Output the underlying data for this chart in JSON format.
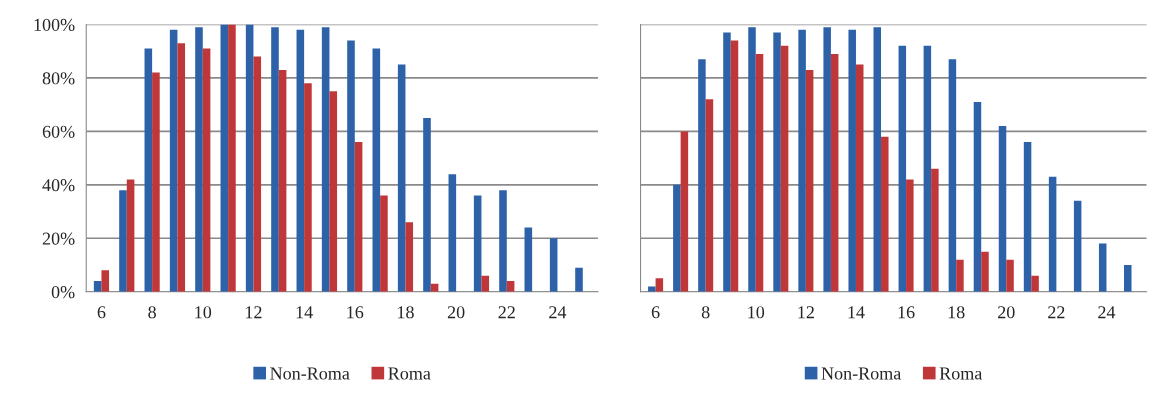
{
  "chart_data": [
    {
      "type": "bar",
      "categories": [
        "6",
        null,
        "8",
        null,
        "10",
        null,
        "12",
        null,
        "14",
        null,
        "16",
        null,
        "18",
        null,
        "20",
        null,
        "22",
        null,
        "24",
        null
      ],
      "series": [
        {
          "name": "Non-Roma",
          "color": "#2e62a8",
          "values": [
            4,
            38,
            91,
            98,
            99,
            100,
            100,
            99,
            98,
            99,
            94,
            91,
            85,
            65,
            44,
            36,
            38,
            24,
            20,
            9
          ]
        },
        {
          "name": "Roma",
          "color": "#c0373a",
          "values": [
            8,
            42,
            82,
            93,
            91,
            100,
            88,
            83,
            78,
            75,
            56,
            36,
            26,
            3,
            0,
            6,
            4,
            0,
            0,
            0
          ]
        }
      ],
      "ylim": [
        0,
        100
      ],
      "yticks": [
        {
          "value": 0,
          "label": "0%"
        },
        {
          "value": 20,
          "label": "20%"
        },
        {
          "value": 40,
          "label": "40%"
        },
        {
          "value": 60,
          "label": "60%"
        },
        {
          "value": 80,
          "label": "80%"
        },
        {
          "value": 100,
          "label": "100%"
        }
      ],
      "grid": "y",
      "legend": "bottom"
    },
    {
      "type": "bar",
      "categories": [
        "6",
        null,
        "8",
        null,
        "10",
        null,
        "12",
        null,
        "14",
        null,
        "16",
        null,
        "18",
        null,
        "20",
        null,
        "22",
        null,
        "24",
        null
      ],
      "series": [
        {
          "name": "Non-Roma",
          "color": "#2e62a8",
          "values": [
            2,
            40,
            87,
            97,
            99,
            97,
            98,
            99,
            98,
            99,
            92,
            92,
            87,
            71,
            62,
            56,
            43,
            34,
            18,
            10
          ]
        },
        {
          "name": "Roma",
          "color": "#c0373a",
          "values": [
            5,
            60,
            72,
            94,
            89,
            92,
            83,
            89,
            85,
            58,
            42,
            46,
            12,
            15,
            12,
            6,
            0,
            0,
            0,
            0
          ]
        }
      ],
      "ylim": [
        0,
        100
      ],
      "yticks": [
        0,
        20,
        40,
        60,
        80,
        100
      ],
      "tick_labels": "x",
      "grid": "y",
      "legend": "bottom"
    }
  ]
}
